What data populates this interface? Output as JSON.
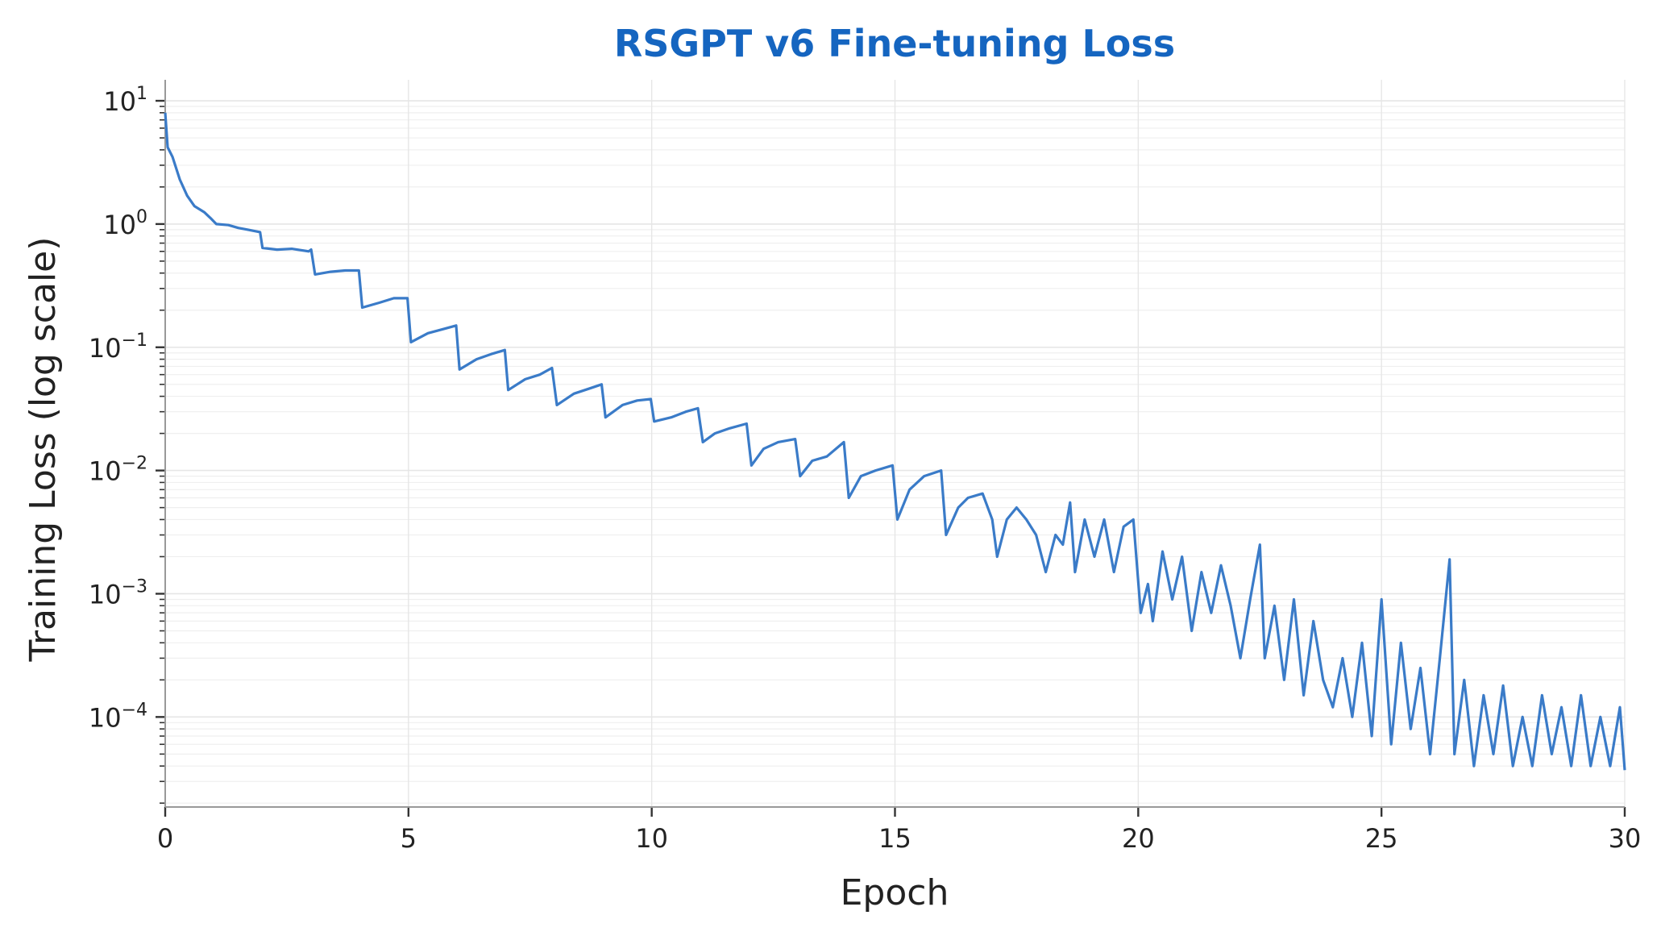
{
  "chart_data": {
    "type": "line",
    "title": "RSGPT v6 Fine-tuning Loss",
    "xlabel": "Epoch",
    "ylabel": "Training Loss (log scale)",
    "xlim": [
      0,
      30
    ],
    "ylim": [
      1.86e-05,
      14.8
    ],
    "yscale": "log",
    "grid": true,
    "line_color": "#3a7bc8",
    "title_color": "#1565c0",
    "x_ticks": [
      "0",
      "5",
      "10",
      "15",
      "20",
      "25",
      "30"
    ],
    "y_ticks": [
      {
        "base": "10",
        "exp": "1"
      },
      {
        "base": "10",
        "exp": "0"
      },
      {
        "base": "10",
        "exp": "−1"
      },
      {
        "base": "10",
        "exp": "−2"
      },
      {
        "base": "10",
        "exp": "−3"
      },
      {
        "base": "10",
        "exp": "−4"
      }
    ],
    "points": [
      [
        0,
        8
      ],
      [
        0.05,
        4.2
      ],
      [
        0.15,
        3.5
      ],
      [
        0.3,
        2.3
      ],
      [
        0.45,
        1.7
      ],
      [
        0.6,
        1.4
      ],
      [
        0.8,
        1.25
      ],
      [
        0.95,
        1.1
      ],
      [
        1.05,
        1.0
      ],
      [
        1.3,
        0.98
      ],
      [
        1.5,
        0.93
      ],
      [
        1.7,
        0.9
      ],
      [
        1.95,
        0.86
      ],
      [
        2.0,
        0.64
      ],
      [
        2.3,
        0.62
      ],
      [
        2.6,
        0.63
      ],
      [
        2.95,
        0.6
      ],
      [
        3.0,
        0.62
      ],
      [
        3.08,
        0.39
      ],
      [
        3.4,
        0.41
      ],
      [
        3.7,
        0.42
      ],
      [
        3.98,
        0.42
      ],
      [
        4.05,
        0.21
      ],
      [
        4.4,
        0.23
      ],
      [
        4.7,
        0.25
      ],
      [
        4.98,
        0.25
      ],
      [
        5.05,
        0.11
      ],
      [
        5.4,
        0.13
      ],
      [
        5.7,
        0.14
      ],
      [
        5.98,
        0.15
      ],
      [
        6.05,
        0.066
      ],
      [
        6.4,
        0.08
      ],
      [
        6.7,
        0.088
      ],
      [
        6.98,
        0.095
      ],
      [
        7.05,
        0.045
      ],
      [
        7.4,
        0.055
      ],
      [
        7.7,
        0.06
      ],
      [
        7.95,
        0.068
      ],
      [
        8.05,
        0.034
      ],
      [
        8.4,
        0.042
      ],
      [
        8.7,
        0.046
      ],
      [
        8.97,
        0.05
      ],
      [
        9.05,
        0.027
      ],
      [
        9.4,
        0.034
      ],
      [
        9.7,
        0.037
      ],
      [
        9.98,
        0.038
      ],
      [
        10.05,
        0.025
      ],
      [
        10.4,
        0.027
      ],
      [
        10.7,
        0.03
      ],
      [
        10.95,
        0.032
      ],
      [
        11.05,
        0.017
      ],
      [
        11.3,
        0.02
      ],
      [
        11.6,
        0.022
      ],
      [
        11.95,
        0.024
      ],
      [
        12.05,
        0.011
      ],
      [
        12.3,
        0.015
      ],
      [
        12.6,
        0.017
      ],
      [
        12.95,
        0.018
      ],
      [
        13.05,
        0.009
      ],
      [
        13.3,
        0.012
      ],
      [
        13.6,
        0.013
      ],
      [
        13.95,
        0.017
      ],
      [
        14.05,
        0.006
      ],
      [
        14.3,
        0.009
      ],
      [
        14.6,
        0.01
      ],
      [
        14.95,
        0.011
      ],
      [
        15.05,
        0.004
      ],
      [
        15.3,
        0.007
      ],
      [
        15.6,
        0.009
      ],
      [
        15.95,
        0.01
      ],
      [
        16.05,
        0.003
      ],
      [
        16.3,
        0.005
      ],
      [
        16.5,
        0.006
      ],
      [
        16.8,
        0.0065
      ],
      [
        17.0,
        0.004
      ],
      [
        17.1,
        0.002
      ],
      [
        17.3,
        0.004
      ],
      [
        17.5,
        0.005
      ],
      [
        17.7,
        0.004
      ],
      [
        17.9,
        0.003
      ],
      [
        18.1,
        0.0015
      ],
      [
        18.3,
        0.003
      ],
      [
        18.45,
        0.0025
      ],
      [
        18.6,
        0.0055
      ],
      [
        18.7,
        0.0015
      ],
      [
        18.9,
        0.004
      ],
      [
        19.1,
        0.002
      ],
      [
        19.3,
        0.004
      ],
      [
        19.5,
        0.0015
      ],
      [
        19.7,
        0.0035
      ],
      [
        19.9,
        0.004
      ],
      [
        20.05,
        0.0007
      ],
      [
        20.2,
        0.0012
      ],
      [
        20.3,
        0.0006
      ],
      [
        20.5,
        0.0022
      ],
      [
        20.7,
        0.0009
      ],
      [
        20.9,
        0.002
      ],
      [
        21.1,
        0.0005
      ],
      [
        21.3,
        0.0015
      ],
      [
        21.5,
        0.0007
      ],
      [
        21.7,
        0.0017
      ],
      [
        21.9,
        0.0008
      ],
      [
        22.1,
        0.0003
      ],
      [
        22.3,
        0.0009
      ],
      [
        22.5,
        0.0025
      ],
      [
        22.6,
        0.0003
      ],
      [
        22.8,
        0.0008
      ],
      [
        23.0,
        0.0002
      ],
      [
        23.2,
        0.0009
      ],
      [
        23.4,
        0.00015
      ],
      [
        23.6,
        0.0006
      ],
      [
        23.8,
        0.0002
      ],
      [
        24.0,
        0.00012
      ],
      [
        24.2,
        0.0003
      ],
      [
        24.4,
        0.0001
      ],
      [
        24.6,
        0.0004
      ],
      [
        24.8,
        7e-05
      ],
      [
        25.0,
        0.0009
      ],
      [
        25.2,
        6e-05
      ],
      [
        25.4,
        0.0004
      ],
      [
        25.6,
        8e-05
      ],
      [
        25.8,
        0.00025
      ],
      [
        26.0,
        5e-05
      ],
      [
        26.2,
        0.0003
      ],
      [
        26.4,
        0.0019
      ],
      [
        26.5,
        5e-05
      ],
      [
        26.7,
        0.0002
      ],
      [
        26.9,
        4e-05
      ],
      [
        27.1,
        0.00015
      ],
      [
        27.3,
        5e-05
      ],
      [
        27.5,
        0.00018
      ],
      [
        27.7,
        4e-05
      ],
      [
        27.9,
        0.0001
      ],
      [
        28.1,
        4e-05
      ],
      [
        28.3,
        0.00015
      ],
      [
        28.5,
        5e-05
      ],
      [
        28.7,
        0.00012
      ],
      [
        28.9,
        4e-05
      ],
      [
        29.1,
        0.00015
      ],
      [
        29.3,
        4e-05
      ],
      [
        29.5,
        0.0001
      ],
      [
        29.7,
        4e-05
      ],
      [
        29.9,
        0.00012
      ],
      [
        30,
        3.7e-05
      ]
    ]
  }
}
